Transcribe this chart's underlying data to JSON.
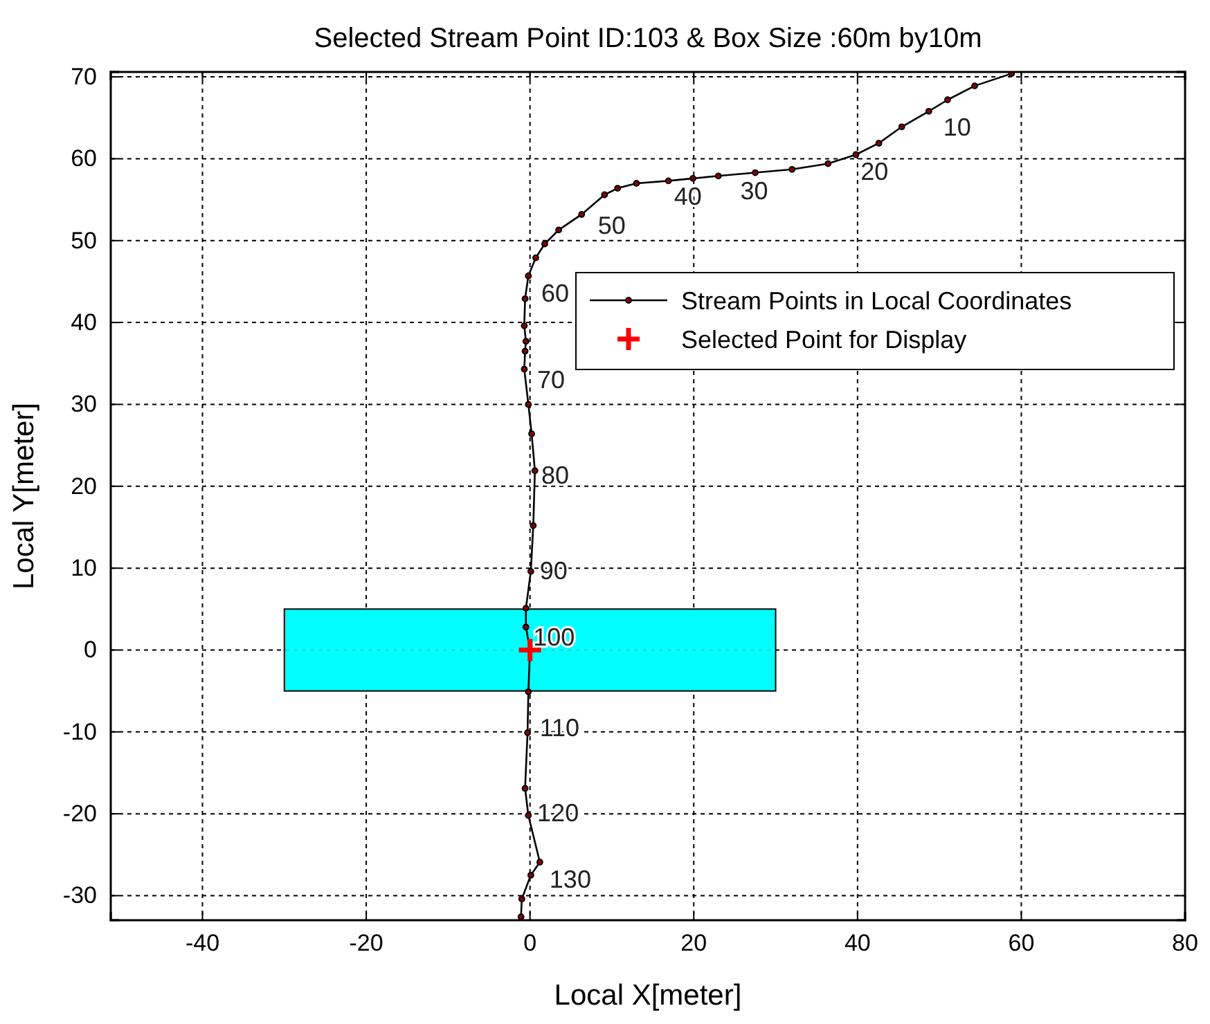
{
  "chart_data": {
    "type": "line",
    "title": "Selected Stream Point ID:103 & Box Size :60m by10m",
    "xlabel": "Local X[meter]",
    "ylabel": "Local Y[meter]",
    "xlim": [
      -51.2,
      80
    ],
    "ylim": [
      -33,
      70.6
    ],
    "xticks": [
      -40,
      -20,
      0,
      20,
      40,
      60,
      80
    ],
    "yticks": [
      -30,
      -20,
      -10,
      0,
      10,
      20,
      30,
      40,
      50,
      60,
      70
    ],
    "grid": true,
    "legend": "right",
    "marker": "circle",
    "series": [
      {
        "type": "area",
        "color": "#00ffff",
        "marker": "none",
        "x": [
          -30,
          0,
          30
        ],
        "values": [
          5,
          5,
          5
        ]
      },
      {
        "type": "area",
        "color": "#00ffff",
        "marker": "none",
        "x": [
          -30,
          0,
          30
        ],
        "values": [
          -5,
          -5,
          -5
        ]
      },
      {
        "name": "Stream Points in Local Coordinates",
        "color": "#000000",
        "x": [
          58.8,
          54.3,
          51.0,
          48.7,
          45.4,
          42.6,
          39.8,
          36.4,
          32.0,
          27.5,
          23.0,
          19.9,
          16.9,
          13.0,
          10.7,
          9.1,
          6.3,
          3.5,
          1.8,
          0.7,
          -0.2,
          -0.6,
          -0.7,
          -0.5,
          -0.6,
          -0.7,
          -0.2,
          0.2,
          0.6,
          0.4,
          0.1,
          -0.5,
          -0.5,
          0,
          -0.2,
          -0.3,
          -0.6,
          -0.2,
          1.2,
          0.1,
          -1.0,
          -1.1
        ],
        "values": [
          70.4,
          68.9,
          67.2,
          65.8,
          63.9,
          61.9,
          60.5,
          59.4,
          58.7,
          58.3,
          57.9,
          57.6,
          57.3,
          57.0,
          56.4,
          55.6,
          53.2,
          51.3,
          49.6,
          47.9,
          45.7,
          42.9,
          39.6,
          37.7,
          36.5,
          34.3,
          30.0,
          26.4,
          21.9,
          15.2,
          9.6,
          5.1,
          2.8,
          0,
          -5.1,
          -10.1,
          -16.9,
          -20.2,
          -25.9,
          -27.5,
          -30.4,
          -32.6
        ]
      },
      {
        "type": "scatter",
        "name": "Selected Point for Display",
        "color": "#ff0000",
        "marker": "cross",
        "x": [
          0
        ],
        "values": [
          0
        ]
      }
    ],
    "annotations": [
      {
        "text": "10",
        "x": 49.3,
        "y": 65.8
      },
      {
        "text": "20",
        "x": 39.2,
        "y": 60.4
      },
      {
        "text": "30",
        "x": 24.5,
        "y": 58.0
      },
      {
        "text": "40",
        "x": 16.4,
        "y": 57.3
      },
      {
        "text": "50",
        "x": 7.1,
        "y": 53.8
      },
      {
        "text": "60",
        "x": 0.2,
        "y": 45.5
      },
      {
        "text": "70",
        "x": -0.3,
        "y": 34.9
      },
      {
        "text": "80",
        "x": 0.2,
        "y": 23.3
      },
      {
        "text": "90",
        "x": 0,
        "y": 11.6
      },
      {
        "text": "100",
        "x": -0.8,
        "y": 3.5
      },
      {
        "text": "110",
        "x": 0,
        "y": -7.6
      },
      {
        "text": "120",
        "x": -0.3,
        "y": -18.0
      },
      {
        "text": "130",
        "x": 1.2,
        "y": -26.1
      }
    ]
  }
}
